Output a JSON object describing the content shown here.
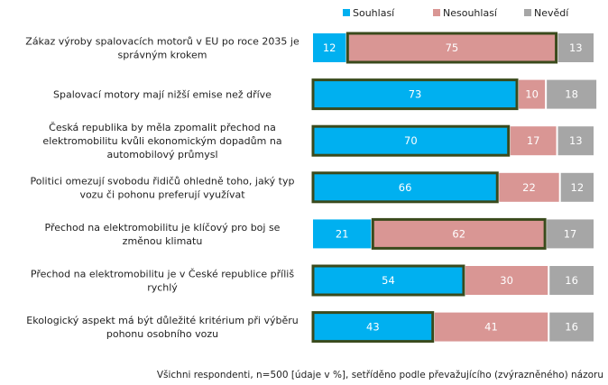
{
  "chart_data": {
    "type": "bar",
    "orientation": "horizontal",
    "stacked": true,
    "unit": "%",
    "categories": [
      [
        "Zákaz výroby spalovacích motorů v EU po roce 2035 je",
        "správným krokem"
      ],
      [
        "Spalovací motory mají nižší emise než dříve"
      ],
      [
        "Česká republika by měla zpomalit přechod na",
        "elektromobilitu kvůli ekonomickým dopadům na",
        "automobilový průmysl"
      ],
      [
        "Politici omezují svobodu řidičů ohledně toho, jaký typ",
        "vozu či pohonu preferují využívat"
      ],
      [
        "Přechod na elektromobilitu je klíčový pro boj se",
        "změnou klimatu"
      ],
      [
        "Přechod na elektromobilitu je v České republice příliš",
        "rychlý"
      ],
      [
        "Ekologický aspekt má být důležité kritérium při výběru",
        "pohonu osobního vozu"
      ]
    ],
    "series": [
      {
        "name": "Souhlasí",
        "color": "#00b0f0",
        "values": [
          12,
          73,
          70,
          66,
          21,
          54,
          43
        ]
      },
      {
        "name": "Nesouhlasí",
        "color": "#d99694",
        "values": [
          75,
          10,
          17,
          22,
          62,
          30,
          41
        ]
      },
      {
        "name": "Nevědí",
        "color": "#a6a6a6",
        "values": [
          13,
          18,
          13,
          12,
          17,
          16,
          16
        ]
      }
    ],
    "highlighted_series_index": [
      1,
      0,
      0,
      0,
      1,
      0,
      0
    ],
    "highlight_border_color": "#3a4a1c",
    "xlim": [
      0,
      100
    ],
    "legend": "top-right",
    "footnote": "Všichni respondenti, n=500 [údaje v %], setříděno podle převažujícího (zvýrazněného) názoru"
  }
}
